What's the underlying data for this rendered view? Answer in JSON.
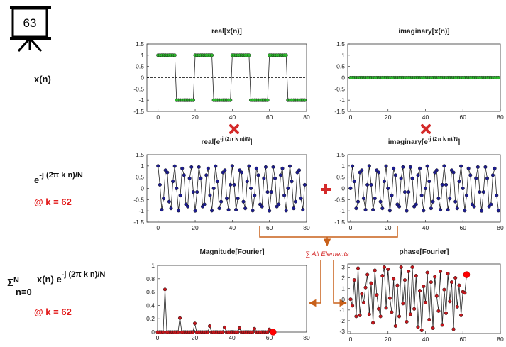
{
  "slide": {
    "number": 63,
    "row_labels": {
      "signal": "x(n)",
      "kernel": [
        "e",
        "-j (2π k n)/N"
      ],
      "kernel_k": "@ k = 62",
      "sum": [
        "Σ",
        "N",
        "n=0",
        " x(n) e",
        "-j (2π k n)/N"
      ],
      "sum_k": "@ k = 62"
    },
    "annotation": "∑ All Elements"
  },
  "chart_data": [
    {
      "type": "line",
      "title": [
        "real[x(n)]"
      ],
      "x": [
        0,
        1,
        2,
        3,
        4,
        5,
        6,
        7,
        8,
        9,
        10,
        11,
        12,
        13,
        14,
        15,
        16,
        17,
        18,
        19,
        20,
        21,
        22,
        23,
        24,
        25,
        26,
        27,
        28,
        29,
        30,
        31,
        32,
        33,
        34,
        35,
        36,
        37,
        38,
        39,
        40,
        41,
        42,
        43,
        44,
        45,
        46,
        47,
        48,
        49,
        50,
        51,
        52,
        53,
        54,
        55,
        56,
        57,
        58,
        59,
        60,
        61,
        62,
        63,
        64,
        65,
        66,
        67,
        68,
        69,
        70,
        71,
        72,
        73,
        74,
        75,
        76,
        77,
        78,
        79
      ],
      "series": [
        {
          "color": "#2db82d",
          "values": [
            1,
            1,
            1,
            1,
            1,
            1,
            1,
            1,
            1,
            1,
            -1,
            -1,
            -1,
            -1,
            -1,
            -1,
            -1,
            -1,
            -1,
            -1,
            1,
            1,
            1,
            1,
            1,
            1,
            1,
            1,
            1,
            1,
            -1,
            -1,
            -1,
            -1,
            -1,
            -1,
            -1,
            -1,
            -1,
            -1,
            1,
            1,
            1,
            1,
            1,
            1,
            1,
            1,
            1,
            1,
            -1,
            -1,
            -1,
            -1,
            -1,
            -1,
            -1,
            -1,
            -1,
            -1,
            1,
            1,
            1,
            1,
            1,
            1,
            1,
            1,
            1,
            1,
            -1,
            -1,
            -1,
            -1,
            -1,
            -1,
            -1,
            -1,
            -1,
            -1
          ]
        }
      ],
      "xlim": [
        -6,
        80
      ],
      "ylim": [
        -1.5,
        1.5
      ],
      "xticks": [
        0,
        20,
        40,
        60,
        80
      ],
      "yticks": [
        -1.5,
        -1,
        -0.5,
        0,
        0.5,
        1,
        1.5
      ],
      "zero_line": true
    },
    {
      "type": "line",
      "title": [
        "imaginary[x(n)]"
      ],
      "x": [
        0,
        1,
        2,
        3,
        4,
        5,
        6,
        7,
        8,
        9,
        10,
        11,
        12,
        13,
        14,
        15,
        16,
        17,
        18,
        19,
        20,
        21,
        22,
        23,
        24,
        25,
        26,
        27,
        28,
        29,
        30,
        31,
        32,
        33,
        34,
        35,
        36,
        37,
        38,
        39,
        40,
        41,
        42,
        43,
        44,
        45,
        46,
        47,
        48,
        49,
        50,
        51,
        52,
        53,
        54,
        55,
        56,
        57,
        58,
        59,
        60,
        61,
        62,
        63,
        64,
        65,
        66,
        67,
        68,
        69,
        70,
        71,
        72,
        73,
        74,
        75,
        76,
        77,
        78,
        79
      ],
      "series": [
        {
          "color": "#2db82d",
          "values": [
            0,
            0,
            0,
            0,
            0,
            0,
            0,
            0,
            0,
            0,
            0,
            0,
            0,
            0,
            0,
            0,
            0,
            0,
            0,
            0,
            0,
            0,
            0,
            0,
            0,
            0,
            0,
            0,
            0,
            0,
            0,
            0,
            0,
            0,
            0,
            0,
            0,
            0,
            0,
            0,
            0,
            0,
            0,
            0,
            0,
            0,
            0,
            0,
            0,
            0,
            0,
            0,
            0,
            0,
            0,
            0,
            0,
            0,
            0,
            0,
            0,
            0,
            0,
            0,
            0,
            0,
            0,
            0,
            0,
            0,
            0,
            0,
            0,
            0,
            0,
            0,
            0,
            0,
            0,
            0
          ]
        }
      ],
      "xlim": [
        -1.5,
        80
      ],
      "ylim": [
        -1.5,
        1.5
      ],
      "xticks": [
        0,
        20,
        40,
        60,
        80
      ],
      "yticks": [
        -1.5,
        -1,
        -0.5,
        0,
        0.5,
        1,
        1.5
      ],
      "zero_line": true
    },
    {
      "type": "line",
      "title": [
        "real[e",
        "-j (2π k n)/N",
        "]"
      ],
      "x": [
        0,
        1,
        2,
        3,
        4,
        5,
        6,
        7,
        8,
        9,
        10,
        11,
        12,
        13,
        14,
        15,
        16,
        17,
        18,
        19,
        20,
        21,
        22,
        23,
        24,
        25,
        26,
        27,
        28,
        29,
        30,
        31,
        32,
        33,
        34,
        35,
        36,
        37,
        38,
        39,
        40,
        41,
        42,
        43,
        44,
        45,
        46,
        47,
        48,
        49,
        50,
        51,
        52,
        53,
        54,
        55,
        56,
        57,
        58,
        59,
        60,
        61,
        62,
        63,
        64,
        65,
        66,
        67,
        68,
        69,
        70,
        71,
        72,
        73,
        74,
        75,
        76,
        77,
        78,
        79
      ],
      "series": [
        {
          "color": "#1c1c8f",
          "values": [
            1,
            0.16,
            -0.95,
            -0.45,
            0.81,
            0.71,
            -0.59,
            -0.89,
            0.31,
            0.99,
            0,
            -0.99,
            -0.31,
            0.89,
            0.59,
            -0.71,
            -0.81,
            0.45,
            0.95,
            -0.16,
            -1,
            -0.16,
            0.95,
            0.45,
            -0.81,
            -0.71,
            0.59,
            0.89,
            -0.31,
            -0.99,
            0,
            0.99,
            0.31,
            -0.89,
            -0.59,
            0.71,
            0.81,
            -0.45,
            -0.95,
            0.16,
            1,
            0.16,
            -0.95,
            -0.45,
            0.81,
            0.71,
            -0.59,
            -0.89,
            0.31,
            0.99,
            0,
            -0.99,
            -0.31,
            0.89,
            0.59,
            -0.71,
            -0.81,
            0.45,
            0.95,
            -0.16,
            -1,
            -0.16,
            0.95,
            0.45,
            -0.81,
            -0.71,
            0.59,
            0.89,
            -0.31,
            -0.99,
            0,
            0.99,
            0.31,
            -0.89,
            -0.59,
            0.71,
            0.81,
            -0.45,
            -0.95,
            0.16
          ]
        }
      ],
      "xlim": [
        -6,
        80
      ],
      "ylim": [
        -1.5,
        1.5
      ],
      "xticks": [
        0,
        20,
        40,
        60,
        80
      ],
      "yticks": [
        -1.5,
        -1,
        -0.5,
        0,
        0.5,
        1,
        1.5
      ]
    },
    {
      "type": "line",
      "title": [
        "imaginary[e",
        "-j (2π k n)/N",
        "]"
      ],
      "x": [
        0,
        1,
        2,
        3,
        4,
        5,
        6,
        7,
        8,
        9,
        10,
        11,
        12,
        13,
        14,
        15,
        16,
        17,
        18,
        19,
        20,
        21,
        22,
        23,
        24,
        25,
        26,
        27,
        28,
        29,
        30,
        31,
        32,
        33,
        34,
        35,
        36,
        37,
        38,
        39,
        40,
        41,
        42,
        43,
        44,
        45,
        46,
        47,
        48,
        49,
        50,
        51,
        52,
        53,
        54,
        55,
        56,
        57,
        58,
        59,
        60,
        61,
        62,
        63,
        64,
        65,
        66,
        67,
        68,
        69,
        70,
        71,
        72,
        73,
        74,
        75,
        76,
        77,
        78,
        79
      ],
      "series": [
        {
          "color": "#1c1c8f",
          "values": [
            0,
            0.99,
            0.31,
            -0.89,
            -0.59,
            0.71,
            0.81,
            -0.45,
            -0.95,
            0.16,
            1,
            0.16,
            -0.95,
            -0.45,
            0.81,
            0.71,
            -0.59,
            -0.89,
            0.31,
            0.99,
            0,
            -0.99,
            -0.31,
            0.89,
            0.59,
            -0.71,
            -0.81,
            0.45,
            0.95,
            -0.16,
            -1,
            -0.16,
            0.95,
            0.45,
            -0.81,
            -0.71,
            0.59,
            0.89,
            -0.31,
            -0.99,
            0,
            0.99,
            0.31,
            -0.89,
            -0.59,
            0.71,
            0.81,
            -0.45,
            -0.95,
            0.16,
            1,
            0.16,
            -0.95,
            -0.45,
            0.81,
            0.71,
            -0.59,
            -0.89,
            0.31,
            0.99,
            0,
            -0.99,
            -0.31,
            0.89,
            0.59,
            -0.71,
            -0.81,
            0.45,
            0.95,
            -0.16,
            -1,
            -0.16,
            0.95,
            0.45,
            -0.81,
            -0.71,
            0.59,
            0.89,
            -0.31,
            -0.99
          ]
        }
      ],
      "xlim": [
        -1.5,
        80
      ],
      "ylim": [
        -1.5,
        1.5
      ],
      "xticks": [
        0,
        20,
        40,
        60,
        80
      ],
      "yticks": [
        -1.5,
        -1,
        -0.5,
        0,
        0.5,
        1,
        1.5
      ]
    },
    {
      "type": "line",
      "title": [
        "Magnitude[Fourier]"
      ],
      "x": [
        0,
        1,
        2,
        3,
        4,
        5,
        6,
        7,
        8,
        9,
        10,
        11,
        12,
        13,
        14,
        15,
        16,
        17,
        18,
        19,
        20,
        21,
        22,
        23,
        24,
        25,
        26,
        27,
        28,
        29,
        30,
        31,
        32,
        33,
        34,
        35,
        36,
        37,
        38,
        39,
        40,
        41,
        42,
        43,
        44,
        45,
        46,
        47,
        48,
        49,
        50,
        51,
        52,
        53,
        54,
        55,
        56,
        57,
        58,
        59,
        60,
        61,
        62
      ],
      "series": [
        {
          "color": "#c4161c",
          "values": [
            0,
            0,
            0,
            0,
            0.64,
            0,
            0,
            0,
            0,
            0,
            0,
            0,
            0.21,
            0,
            0,
            0,
            0,
            0,
            0,
            0,
            0.13,
            0,
            0,
            0,
            0,
            0,
            0,
            0,
            0.09,
            0,
            0,
            0,
            0,
            0,
            0,
            0,
            0.07,
            0,
            0,
            0,
            0,
            0,
            0,
            0,
            0.06,
            0,
            0,
            0,
            0,
            0,
            0,
            0,
            0.05,
            0,
            0,
            0,
            0,
            0,
            0,
            0,
            0.04,
            0,
            0
          ]
        }
      ],
      "highlight_x": 62,
      "xlim": [
        0,
        80
      ],
      "ylim": [
        0,
        1
      ],
      "xticks": [
        0,
        20,
        40,
        60,
        80
      ],
      "yticks": [
        0,
        0.2,
        0.4,
        0.6,
        0.8,
        1
      ]
    },
    {
      "type": "line",
      "title": [
        "phase[Fourier]"
      ],
      "x": [
        0,
        1,
        2,
        3,
        4,
        5,
        6,
        7,
        8,
        9,
        10,
        11,
        12,
        13,
        14,
        15,
        16,
        17,
        18,
        19,
        20,
        21,
        22,
        23,
        24,
        25,
        26,
        27,
        28,
        29,
        30,
        31,
        32,
        33,
        34,
        35,
        36,
        37,
        38,
        39,
        40,
        41,
        42,
        43,
        44,
        45,
        46,
        47,
        48,
        49,
        50,
        51,
        52,
        53,
        54,
        55,
        56,
        57,
        58,
        59,
        60,
        61,
        62
      ],
      "series": [
        {
          "color": "#c4161c",
          "values": [
            0,
            -0.6,
            1.8,
            -1.6,
            2.9,
            -1.5,
            0.5,
            -0.3,
            1.1,
            2.3,
            -1.4,
            1.5,
            -2.2,
            2.7,
            0.4,
            -0.9,
            -1.6,
            2.2,
            3,
            -0.8,
            2.8,
            0.1,
            -1.2,
            1.9,
            -2.5,
            1.3,
            -1.6,
            3,
            -0.4,
            1.8,
            -2.1,
            2.6,
            -1.4,
            3,
            -0.9,
            2.2,
            -2.6,
            0.8,
            -2.9,
            1.2,
            -0.3,
            2.5,
            -1.9,
            1.6,
            -2.7,
            2.1,
            0.3,
            -1.1,
            2.6,
            -2.4,
            0.9,
            -1.3,
            2.4,
            -0.2,
            1.6,
            -2.8,
            2,
            -0.7,
            1.3,
            -1.5,
            0.7,
            0.6,
            2.3
          ]
        }
      ],
      "highlight_x": 62,
      "xlim": [
        -1.5,
        80
      ],
      "ylim": [
        -3.2,
        3.3
      ],
      "xticks": [
        0,
        20,
        40,
        60,
        80
      ],
      "yticks": [
        -3,
        -2,
        -1,
        0,
        1,
        2,
        3
      ]
    }
  ]
}
